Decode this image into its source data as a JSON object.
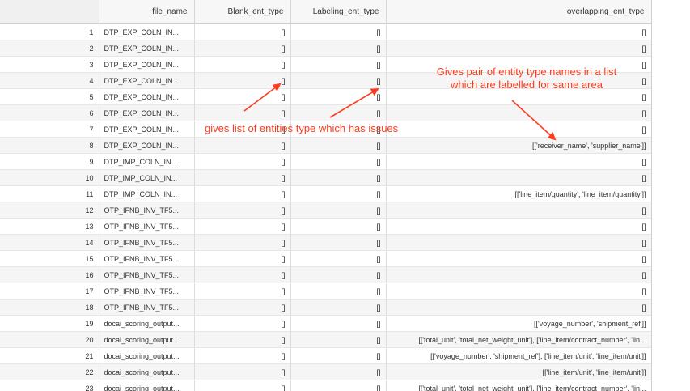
{
  "columns": [
    "",
    "file_name",
    "Blank_ent_type",
    "Labeling_ent_type",
    "overlapping_ent_type"
  ],
  "rows": [
    {
      "idx": "1",
      "file_name": "DTP_EXP_COLN_IN...",
      "blank": "[]",
      "labeling": "[]",
      "overlapping": "[]"
    },
    {
      "idx": "2",
      "file_name": "DTP_EXP_COLN_IN...",
      "blank": "[]",
      "labeling": "[]",
      "overlapping": "[]"
    },
    {
      "idx": "3",
      "file_name": "DTP_EXP_COLN_IN...",
      "blank": "[]",
      "labeling": "[]",
      "overlapping": "[]"
    },
    {
      "idx": "4",
      "file_name": "DTP_EXP_COLN_IN...",
      "blank": "[]",
      "labeling": "[]",
      "overlapping": "[]"
    },
    {
      "idx": "5",
      "file_name": "DTP_EXP_COLN_IN...",
      "blank": "[]",
      "labeling": "[]",
      "overlapping": "[]"
    },
    {
      "idx": "6",
      "file_name": "DTP_EXP_COLN_IN...",
      "blank": "[]",
      "labeling": "[]",
      "overlapping": "[]"
    },
    {
      "idx": "7",
      "file_name": "DTP_EXP_COLN_IN...",
      "blank": "[]",
      "labeling": "[]",
      "overlapping": "[]"
    },
    {
      "idx": "8",
      "file_name": "DTP_EXP_COLN_IN...",
      "blank": "[]",
      "labeling": "[]",
      "overlapping": "[['receiver_name', 'supplier_name']]"
    },
    {
      "idx": "9",
      "file_name": "DTP_IMP_COLN_IN...",
      "blank": "[]",
      "labeling": "[]",
      "overlapping": "[]"
    },
    {
      "idx": "10",
      "file_name": "DTP_IMP_COLN_IN...",
      "blank": "[]",
      "labeling": "[]",
      "overlapping": "[]"
    },
    {
      "idx": "11",
      "file_name": "DTP_IMP_COLN_IN...",
      "blank": "[]",
      "labeling": "[]",
      "overlapping": "[['line_item/quantity', 'line_item/quantity']]"
    },
    {
      "idx": "12",
      "file_name": "OTP_IFNB_INV_TF5...",
      "blank": "[]",
      "labeling": "[]",
      "overlapping": "[]"
    },
    {
      "idx": "13",
      "file_name": "OTP_IFNB_INV_TF5...",
      "blank": "[]",
      "labeling": "[]",
      "overlapping": "[]"
    },
    {
      "idx": "14",
      "file_name": "OTP_IFNB_INV_TF5...",
      "blank": "[]",
      "labeling": "[]",
      "overlapping": "[]"
    },
    {
      "idx": "15",
      "file_name": "OTP_IFNB_INV_TF5...",
      "blank": "[]",
      "labeling": "[]",
      "overlapping": "[]"
    },
    {
      "idx": "16",
      "file_name": "OTP_IFNB_INV_TF5...",
      "blank": "[]",
      "labeling": "[]",
      "overlapping": "[]"
    },
    {
      "idx": "17",
      "file_name": "OTP_IFNB_INV_TF5...",
      "blank": "[]",
      "labeling": "[]",
      "overlapping": "[]"
    },
    {
      "idx": "18",
      "file_name": "OTP_IFNB_INV_TF5...",
      "blank": "[]",
      "labeling": "[]",
      "overlapping": "[]"
    },
    {
      "idx": "19",
      "file_name": "docai_scoring_output...",
      "blank": "[]",
      "labeling": "[]",
      "overlapping": "[['voyage_number', 'shipment_ref']]"
    },
    {
      "idx": "20",
      "file_name": "docai_scoring_output...",
      "blank": "[]",
      "labeling": "[]",
      "overlapping": "[['total_unit', 'total_net_weight_unit'], ['line_item/contract_number', 'lin..."
    },
    {
      "idx": "21",
      "file_name": "docai_scoring_output...",
      "blank": "[]",
      "labeling": "[]",
      "overlapping": "[['voyage_number', 'shipment_ref'], ['line_item/unit', 'line_item/unit']]"
    },
    {
      "idx": "22",
      "file_name": "docai_scoring_output...",
      "blank": "[]",
      "labeling": "[]",
      "overlapping": "[['line_item/unit', 'line_item/unit']]"
    },
    {
      "idx": "23",
      "file_name": "docai_scoring_output...",
      "blank": "[]",
      "labeling": "[]",
      "overlapping": "[['total_unit', 'total_net_weight_unit'], ['line_item/contract_number', 'lin..."
    }
  ],
  "annotations": {
    "entities_note": "gives list of entities type which has issues",
    "overlap_note_line1": "Gives pair of entity type names in a list",
    "overlap_note_line2": "which are labelled for same area",
    "color": "#ff3b1f"
  }
}
